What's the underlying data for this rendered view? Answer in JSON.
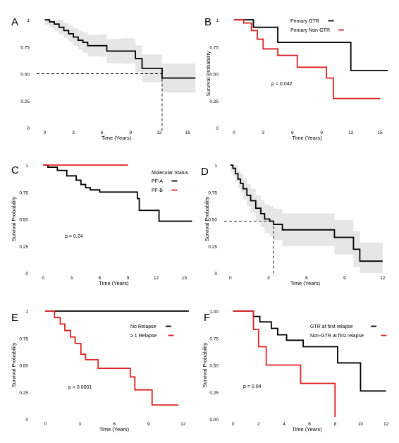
{
  "figure": {
    "background": "#ffffff"
  },
  "chart_data": [
    {
      "panel": "A",
      "type": "line",
      "xlabel": "Time (Years)",
      "ylabel": "",
      "xlim": [
        -1,
        16
      ],
      "ylim": [
        0,
        1
      ],
      "xticks": [
        0,
        3,
        6,
        9,
        12,
        15
      ],
      "yticks": [
        "0",
        "0.25",
        "0.50",
        "0.75",
        "1"
      ],
      "grid": false,
      "series": [
        {
          "color": "#000000",
          "x": [
            0,
            0.5,
            1,
            1.5,
            2,
            2.5,
            3,
            3.5,
            4,
            4.5,
            6,
            6.5,
            8,
            9.5,
            10.2,
            12.3,
            15.8
          ],
          "y": [
            1,
            0.98,
            0.96,
            0.93,
            0.9,
            0.87,
            0.84,
            0.81,
            0.79,
            0.76,
            0.76,
            0.71,
            0.71,
            0.64,
            0.55,
            0.46,
            0.46
          ],
          "band": 0.14
        }
      ],
      "median": {
        "x": 12.3,
        "y": 0.5
      }
    },
    {
      "panel": "B",
      "type": "line",
      "xlabel": "Time (Years)",
      "ylabel": "Survival Probability",
      "xlim": [
        -1,
        16
      ],
      "ylim": [
        0,
        1
      ],
      "xticks": [
        0,
        3,
        6,
        9,
        12,
        15
      ],
      "yticks": [
        "0",
        "0.25",
        "0.50",
        "0.75",
        "1"
      ],
      "legend": "top-right",
      "pvalue": "p = 0.042",
      "series": [
        {
          "name": "Primary GTR",
          "color": "#000000",
          "x": [
            0,
            2,
            4.5,
            12,
            15.8
          ],
          "y": [
            1,
            0.93,
            0.79,
            0.53,
            0.53
          ]
        },
        {
          "name": "Primary Non-GTR",
          "color": "#e02020",
          "x": [
            0,
            1,
            1.8,
            2.4,
            3,
            4.5,
            6.5,
            9.5,
            10.2,
            15
          ],
          "y": [
            1,
            0.97,
            0.9,
            0.82,
            0.73,
            0.67,
            0.56,
            0.46,
            0.27,
            0.27
          ]
        }
      ]
    },
    {
      "panel": "C",
      "type": "line",
      "xlabel": "Time (Years)",
      "ylabel": "Survival Probability",
      "xlim": [
        -1,
        16
      ],
      "ylim": [
        0,
        1
      ],
      "xticks": [
        0,
        3,
        6,
        9,
        12,
        15
      ],
      "yticks": [
        "0",
        "0.25",
        "0.50",
        "0.75",
        "1"
      ],
      "legend": "top-right",
      "legend_title": "Molecular Status",
      "pvalue": "p = 0.24",
      "series": [
        {
          "name": "PF-A",
          "color": "#000000",
          "x": [
            0,
            0.5,
            1.5,
            2.5,
            3.5,
            4,
            4.5,
            5,
            6,
            10,
            10.2,
            12.3,
            15.8
          ],
          "y": [
            1,
            0.98,
            0.95,
            0.9,
            0.86,
            0.82,
            0.79,
            0.77,
            0.75,
            0.69,
            0.58,
            0.48,
            0.48
          ]
        },
        {
          "name": "PF-B",
          "color": "#e02020",
          "x": [
            0,
            9
          ],
          "y": [
            1,
            1
          ]
        }
      ]
    },
    {
      "panel": "D",
      "type": "line",
      "xlabel": "Time (Years)",
      "ylabel": "Survival Probability",
      "xlim": [
        -0.6,
        12.4
      ],
      "ylim": [
        0,
        1
      ],
      "xticks": [
        0,
        3,
        6,
        9,
        12
      ],
      "yticks": [
        "0",
        "0.25",
        "0.50",
        "0.75",
        "1"
      ],
      "series": [
        {
          "color": "#000000",
          "x": [
            0,
            0.2,
            0.4,
            0.6,
            0.8,
            1,
            1.3,
            1.6,
            2,
            2.4,
            2.7,
            3.1,
            3.4,
            4.1,
            8.2,
            9.7,
            10.2,
            12
          ],
          "y": [
            1,
            0.97,
            0.92,
            0.87,
            0.83,
            0.78,
            0.72,
            0.67,
            0.6,
            0.55,
            0.5,
            0.48,
            0.45,
            0.4,
            0.33,
            0.22,
            0.11,
            0.11
          ],
          "band": 0.18
        }
      ],
      "median": {
        "x": 3.4,
        "y": 0.48
      }
    },
    {
      "panel": "E",
      "type": "line",
      "xlabel": "Time (Years)",
      "ylabel": "Survival Probability",
      "xlim": [
        -1,
        13
      ],
      "ylim": [
        0,
        1
      ],
      "xticks": [
        0,
        3,
        6,
        9,
        12
      ],
      "yticks": [
        "0",
        "0.25",
        "0.50",
        "0.75",
        "1"
      ],
      "legend": "right",
      "pvalue": "p < 0.0001",
      "series": [
        {
          "name": "No Relapse",
          "color": "#000000",
          "x": [
            0,
            12.5
          ],
          "y": [
            1,
            1
          ]
        },
        {
          "name": "≥ 1 Relapse",
          "color": "#e02020",
          "x": [
            0,
            0.8,
            1.3,
            1.7,
            2.2,
            2.6,
            3.1,
            3.5,
            4.6,
            7.4,
            7.8,
            9.3,
            11.6
          ],
          "y": [
            1,
            0.94,
            0.88,
            0.82,
            0.76,
            0.7,
            0.6,
            0.55,
            0.47,
            0.39,
            0.27,
            0.13,
            0.13
          ]
        }
      ]
    },
    {
      "panel": "F",
      "type": "line",
      "xlabel": "Time (Years)",
      "ylabel": "Survival Probability",
      "xlim": [
        -0.7,
        12.3
      ],
      "ylim": [
        0,
        1
      ],
      "xticks": [
        0,
        2,
        4,
        6,
        8,
        10,
        12
      ],
      "yticks": [
        "0.00",
        "0.25",
        "0.50",
        "0.75",
        "1.00"
      ],
      "legend": "right",
      "pvalue": "p = 0.04",
      "series": [
        {
          "name": "GTR at first relapse",
          "color": "#000000",
          "x": [
            0,
            1.6,
            2.1,
            3,
            3.5,
            4.2,
            5.5,
            8.2,
            10,
            12
          ],
          "y": [
            1,
            0.95,
            0.9,
            0.84,
            0.78,
            0.73,
            0.67,
            0.52,
            0.26,
            0.26
          ]
        },
        {
          "name": "Non-GTR at first relapse",
          "color": "#e02020",
          "x": [
            0,
            1.6,
            2,
            2.6,
            5.3,
            8,
            8
          ],
          "y": [
            1,
            0.83,
            0.67,
            0.5,
            0.33,
            0.2,
            0.02
          ]
        }
      ]
    }
  ]
}
